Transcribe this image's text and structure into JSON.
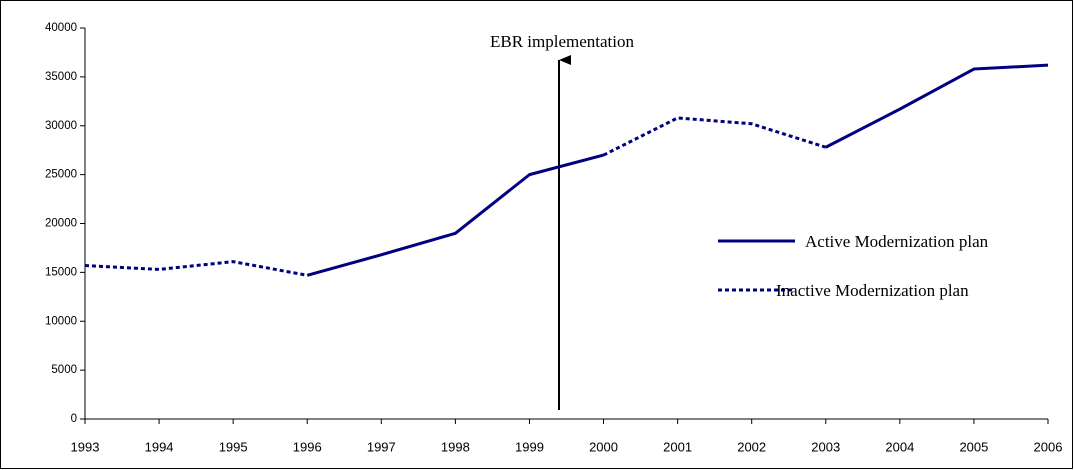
{
  "chart_data": {
    "type": "line",
    "annotation": "EBR implementation",
    "categories": [
      "1993",
      "1994",
      "1995",
      "1996",
      "1997",
      "1998",
      "1999",
      "2000",
      "2001",
      "2002",
      "2003",
      "2004",
      "2005",
      "2006"
    ],
    "series": [
      {
        "name": "Active Modernization plan",
        "color": "#000080",
        "style": "solid",
        "values": [
          null,
          null,
          null,
          14700,
          16800,
          19000,
          25000,
          27000,
          null,
          null,
          27800,
          31700,
          35800,
          36200
        ]
      },
      {
        "name": "Inactive Modernization plan",
        "color": "#000080",
        "style": "dotted",
        "values": [
          15700,
          15300,
          16100,
          14700,
          null,
          null,
          null,
          27000,
          30800,
          30200,
          27800,
          null,
          null,
          null
        ]
      }
    ],
    "ylim": [
      0,
      40000
    ],
    "yticks": [
      0,
      5000,
      10000,
      15000,
      20000,
      25000,
      30000,
      35000,
      40000
    ],
    "grid": false,
    "legend": "right"
  }
}
